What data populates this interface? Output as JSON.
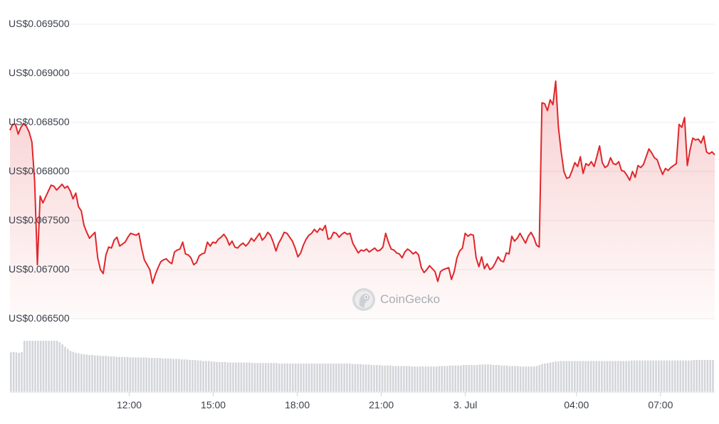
{
  "chart_data": {
    "type": "area",
    "series": [
      {
        "color": "#e0262b",
        "values": [
          0.06842,
          0.06848,
          0.06848,
          0.06838,
          0.06845,
          0.06849,
          0.06846,
          0.0684,
          0.0683,
          0.0679,
          0.06705,
          0.06775,
          0.06768,
          0.06774,
          0.0678,
          0.06786,
          0.06785,
          0.06781,
          0.06784,
          0.06787,
          0.06783,
          0.06785,
          0.0678,
          0.06772,
          0.06778,
          0.06764,
          0.0676,
          0.06745,
          0.06738,
          0.06732,
          0.06735,
          0.06738,
          0.06712,
          0.067,
          0.06696,
          0.06715,
          0.06723,
          0.06722,
          0.0673,
          0.06733,
          0.06724,
          0.06726,
          0.06728,
          0.06733,
          0.06737,
          0.06736,
          0.06735,
          0.06737,
          0.06722,
          0.0671,
          0.06705,
          0.067,
          0.06686,
          0.06695,
          0.06702,
          0.06708,
          0.0671,
          0.06711,
          0.06708,
          0.06706,
          0.06718,
          0.0672,
          0.06721,
          0.06728,
          0.06716,
          0.06715,
          0.06712,
          0.06705,
          0.06707,
          0.06714,
          0.06716,
          0.06717,
          0.06728,
          0.06724,
          0.06728,
          0.06727,
          0.06731,
          0.06733,
          0.06736,
          0.06732,
          0.06725,
          0.06729,
          0.06723,
          0.06722,
          0.06725,
          0.06727,
          0.06724,
          0.06727,
          0.06732,
          0.06729,
          0.06733,
          0.06737,
          0.0673,
          0.06733,
          0.06738,
          0.06735,
          0.06728,
          0.06719,
          0.06727,
          0.06732,
          0.06738,
          0.06737,
          0.06733,
          0.06729,
          0.06722,
          0.06713,
          0.06717,
          0.06725,
          0.06731,
          0.06735,
          0.06737,
          0.06741,
          0.06738,
          0.06742,
          0.0674,
          0.06745,
          0.06731,
          0.06732,
          0.06738,
          0.06737,
          0.06733,
          0.06736,
          0.06738,
          0.06736,
          0.06737,
          0.06727,
          0.06722,
          0.06717,
          0.0672,
          0.06719,
          0.06721,
          0.06718,
          0.0672,
          0.06722,
          0.06719,
          0.0672,
          0.06723,
          0.06737,
          0.06728,
          0.06721,
          0.0672,
          0.06717,
          0.06716,
          0.06712,
          0.06718,
          0.06721,
          0.06719,
          0.06716,
          0.06718,
          0.06715,
          0.06702,
          0.06697,
          0.067,
          0.06704,
          0.06701,
          0.06698,
          0.06688,
          0.06698,
          0.067,
          0.06701,
          0.06702,
          0.0669,
          0.06698,
          0.06712,
          0.06719,
          0.06722,
          0.06737,
          0.06734,
          0.06736,
          0.06735,
          0.06712,
          0.06703,
          0.06713,
          0.06701,
          0.06706,
          0.067,
          0.06702,
          0.06707,
          0.06713,
          0.06709,
          0.06708,
          0.06717,
          0.06716,
          0.06734,
          0.06729,
          0.06732,
          0.06737,
          0.06732,
          0.06727,
          0.06734,
          0.06738,
          0.06733,
          0.06725,
          0.06723,
          0.0687,
          0.06869,
          0.06862,
          0.06873,
          0.06868,
          0.06892,
          0.06845,
          0.0682,
          0.068,
          0.06793,
          0.06794,
          0.06801,
          0.06809,
          0.06805,
          0.06815,
          0.06798,
          0.06808,
          0.06806,
          0.0681,
          0.06805,
          0.06815,
          0.06826,
          0.06809,
          0.06804,
          0.06806,
          0.06814,
          0.06808,
          0.06807,
          0.0681,
          0.06801,
          0.068,
          0.06796,
          0.06791,
          0.068,
          0.06794,
          0.06806,
          0.06804,
          0.06807,
          0.06815,
          0.06823,
          0.06819,
          0.06814,
          0.06812,
          0.06804,
          0.06797,
          0.06803,
          0.06801,
          0.06804,
          0.06806,
          0.06808,
          0.06848,
          0.06845,
          0.06855,
          0.06806,
          0.06822,
          0.06834,
          0.06832,
          0.06833,
          0.06829,
          0.06836,
          0.0682,
          0.06818,
          0.0682,
          0.06817
        ]
      }
    ],
    "volume": [
      0.77,
      0.78,
      0.77,
      0.76,
      0.78,
      1.0,
      1.0,
      1.0,
      1.0,
      1.0,
      1.0,
      1.0,
      1.0,
      1.0,
      1.0,
      1.0,
      1.0,
      1.0,
      0.97,
      0.93,
      0.88,
      0.84,
      0.8,
      0.78,
      0.76,
      0.75,
      0.74,
      0.73,
      0.73,
      0.72,
      0.72,
      0.71,
      0.71,
      0.7,
      0.7,
      0.7,
      0.69,
      0.69,
      0.69,
      0.68,
      0.68,
      0.68,
      0.68,
      0.68,
      0.67,
      0.67,
      0.67,
      0.67,
      0.67,
      0.67,
      0.67,
      0.66,
      0.66,
      0.66,
      0.66,
      0.66,
      0.65,
      0.65,
      0.65,
      0.65,
      0.64,
      0.64,
      0.64,
      0.63,
      0.63,
      0.63,
      0.62,
      0.62,
      0.62,
      0.61,
      0.61,
      0.6,
      0.6,
      0.6,
      0.59,
      0.59,
      0.58,
      0.58,
      0.58,
      0.58,
      0.57,
      0.57,
      0.57,
      0.57,
      0.57,
      0.57,
      0.57,
      0.57,
      0.57,
      0.56,
      0.56,
      0.56,
      0.56,
      0.56,
      0.56,
      0.56,
      0.56,
      0.56,
      0.56,
      0.55,
      0.55,
      0.55,
      0.55,
      0.55,
      0.55,
      0.55,
      0.55,
      0.55,
      0.55,
      0.55,
      0.55,
      0.55,
      0.55,
      0.55,
      0.55,
      0.55,
      0.55,
      0.55,
      0.55,
      0.55,
      0.55,
      0.55,
      0.55,
      0.55,
      0.55,
      0.55,
      0.54,
      0.54,
      0.54,
      0.54,
      0.53,
      0.53,
      0.53,
      0.52,
      0.52,
      0.52,
      0.52,
      0.51,
      0.51,
      0.51,
      0.51,
      0.5,
      0.5,
      0.5,
      0.5,
      0.5,
      0.5,
      0.5,
      0.49,
      0.49,
      0.49,
      0.49,
      0.49,
      0.49,
      0.49,
      0.49,
      0.49,
      0.49,
      0.5,
      0.5,
      0.5,
      0.5,
      0.51,
      0.51,
      0.51,
      0.51,
      0.51,
      0.52,
      0.52,
      0.52,
      0.52,
      0.52,
      0.52,
      0.53,
      0.53,
      0.53,
      0.53,
      0.53,
      0.52,
      0.52,
      0.52,
      0.51,
      0.51,
      0.51,
      0.5,
      0.5,
      0.5,
      0.5,
      0.49,
      0.49,
      0.49,
      0.49,
      0.49,
      0.49,
      0.5,
      0.52,
      0.54,
      0.55,
      0.56,
      0.57,
      0.58,
      0.59,
      0.59,
      0.6,
      0.6,
      0.6,
      0.6,
      0.6,
      0.6,
      0.6,
      0.6,
      0.6,
      0.6,
      0.6,
      0.6,
      0.6,
      0.6,
      0.6,
      0.6,
      0.6,
      0.6,
      0.6,
      0.6,
      0.6,
      0.6,
      0.6,
      0.6,
      0.6,
      0.6,
      0.61,
      0.61,
      0.61,
      0.61,
      0.61,
      0.61,
      0.61,
      0.61,
      0.61,
      0.61,
      0.61,
      0.61,
      0.61,
      0.61,
      0.61,
      0.61,
      0.61,
      0.61,
      0.61,
      0.61,
      0.61,
      0.61,
      0.61,
      0.62,
      0.62,
      0.62,
      0.62,
      0.62,
      0.62,
      0.62,
      0.62
    ],
    "y_ticks": [
      "US$0.069500",
      "US$0.069000",
      "US$0.068500",
      "US$0.068000",
      "US$0.067500",
      "US$0.067000",
      "US$0.066500"
    ],
    "y_tick_values": [
      0.0695,
      0.069,
      0.0685,
      0.068,
      0.0675,
      0.067,
      0.0665
    ],
    "x_ticks": [
      {
        "label": "12:00",
        "index": 44
      },
      {
        "label": "15:00",
        "index": 75
      },
      {
        "label": "18:00",
        "index": 106
      },
      {
        "label": "21:00",
        "index": 137
      },
      {
        "label": "3. Jul",
        "index": 168
      },
      {
        "label": "04:00",
        "index": 209
      },
      {
        "label": "07:00",
        "index": 240
      }
    ],
    "ylim": [
      0.0664,
      0.0696
    ],
    "grid": true,
    "colors": {
      "line": "#e0262b",
      "volume": "#d3d5da",
      "grid": "#e9ebef"
    }
  },
  "watermark": {
    "text": "CoinGecko",
    "icon": "coingecko-gecko-icon"
  }
}
